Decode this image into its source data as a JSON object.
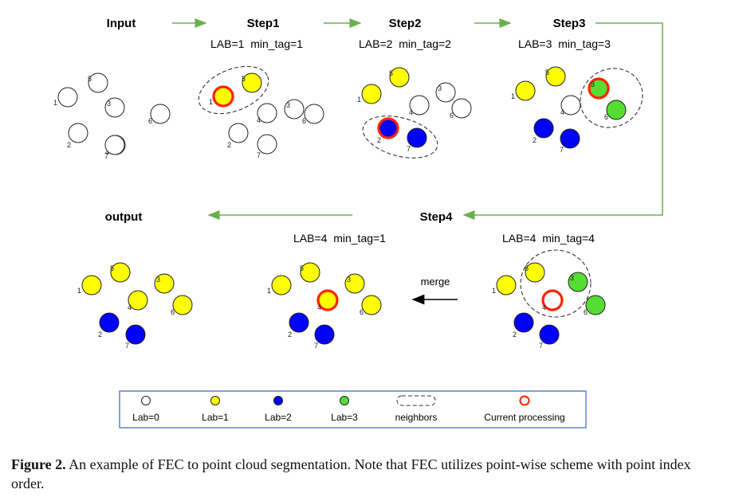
{
  "colors": {
    "lab0": "#ffffff",
    "lab1": "#ffff00",
    "lab2": "#0000ff",
    "lab3": "#55dd33",
    "current": "#ff2200",
    "stroke": "#222222",
    "arrow": "#6ab04c",
    "legend_border": "#4472c4",
    "merge_arrow": "#000000"
  },
  "steps": [
    {
      "id": "input",
      "title": "Input",
      "subtitle": ""
    },
    {
      "id": "step1",
      "title": "Step1",
      "subtitle": "LAB=1  min_tag=1"
    },
    {
      "id": "step2",
      "title": "Step2",
      "subtitle": "LAB=2  min_tag=2"
    },
    {
      "id": "step3",
      "title": "Step3",
      "subtitle": "LAB=3  min_tag=3"
    },
    {
      "id": "step4a",
      "title": "",
      "subtitle": "LAB=4  min_tag=4"
    },
    {
      "id": "step4b",
      "title": "Step4",
      "subtitle": "LAB=4  min_tag=1"
    },
    {
      "id": "output",
      "title": "output",
      "subtitle": ""
    }
  ],
  "panels": [
    {
      "id": "input",
      "labels": [
        0,
        0,
        0,
        0,
        0,
        0,
        0
      ],
      "current": null,
      "neighbors": []
    },
    {
      "id": "step1",
      "labels": [
        1,
        0,
        0,
        0,
        1,
        0,
        0
      ],
      "current": 1,
      "neighbors": [
        1,
        5
      ]
    },
    {
      "id": "step2",
      "labels": [
        1,
        2,
        0,
        0,
        1,
        0,
        2
      ],
      "current": 2,
      "neighbors": [
        2,
        7
      ]
    },
    {
      "id": "step3",
      "labels": [
        1,
        2,
        3,
        0,
        1,
        3,
        2
      ],
      "current": 3,
      "neighbors": [
        3,
        6
      ]
    },
    {
      "id": "step4a",
      "labels": [
        1,
        2,
        3,
        0,
        1,
        3,
        2
      ],
      "current": 4,
      "neighbors": [
        3,
        4,
        5,
        6
      ]
    },
    {
      "id": "step4b",
      "labels": [
        1,
        2,
        1,
        1,
        1,
        1,
        2
      ],
      "current": 4,
      "neighbors": []
    },
    {
      "id": "output",
      "labels": [
        1,
        2,
        1,
        1,
        1,
        1,
        2
      ],
      "current": null,
      "neighbors": []
    }
  ],
  "point_labels": [
    "1",
    "2",
    "3",
    "4",
    "5",
    "6",
    "7"
  ],
  "merge_label": "merge",
  "legend": {
    "items": [
      {
        "kind": "lab0",
        "label": "Lab=0"
      },
      {
        "kind": "lab1",
        "label": "Lab=1"
      },
      {
        "kind": "lab2",
        "label": "Lab=2"
      },
      {
        "kind": "lab3",
        "label": "Lab=3"
      },
      {
        "kind": "neighbors",
        "label": "neighbors"
      },
      {
        "kind": "current",
        "label": "Current processing"
      }
    ]
  },
  "caption": {
    "prefix": "Figure 2.",
    "text": " An example of FEC to point cloud segmentation. Note that FEC utilizes point-wise scheme with point index order."
  }
}
